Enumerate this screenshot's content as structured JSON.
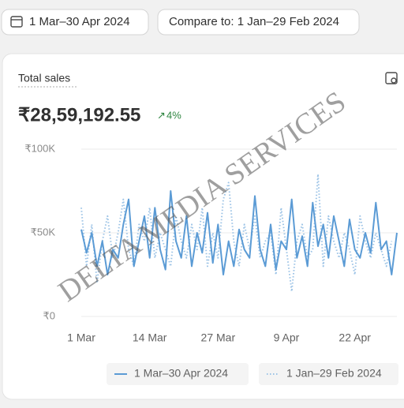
{
  "header": {
    "date_range": "1 Mar–30 Apr 2024",
    "compare": "Compare to: 1 Jan–29 Feb 2024"
  },
  "card": {
    "title": "Total sales",
    "total": "₹28,59,192.55",
    "change": "4%"
  },
  "watermark": "DELTA MEDIA SERVICES",
  "chart_data": {
    "type": "line",
    "categories": [
      "1 Mar",
      null,
      null,
      null,
      null,
      null,
      null,
      null,
      null,
      null,
      null,
      null,
      null,
      "14 Mar",
      null,
      null,
      null,
      null,
      null,
      null,
      null,
      null,
      null,
      null,
      null,
      null,
      "27 Mar",
      null,
      null,
      null,
      null,
      null,
      null,
      null,
      null,
      null,
      null,
      null,
      null,
      "9 Apr",
      null,
      null,
      null,
      null,
      null,
      null,
      null,
      null,
      null,
      null,
      null,
      null,
      "22 Apr",
      null,
      null,
      null,
      null,
      null,
      null,
      null,
      null
    ],
    "series": [
      {
        "name": "1 Mar–30 Apr 2024",
        "color": "#5b9bd5",
        "style": "solid",
        "values": [
          52000,
          38000,
          50000,
          30000,
          45000,
          25000,
          40000,
          35000,
          55000,
          70000,
          30000,
          45000,
          60000,
          35000,
          65000,
          40000,
          28000,
          75000,
          45000,
          35000,
          60000,
          30000,
          50000,
          38000,
          62000,
          32000,
          55000,
          25000,
          45000,
          30000,
          52000,
          40000,
          35000,
          72000,
          40000,
          30000,
          55000,
          28000,
          45000,
          40000,
          70000,
          35000,
          48000,
          30000,
          68000,
          42000,
          55000,
          35000,
          60000,
          45000,
          30000,
          58000,
          40000,
          35000,
          50000,
          38000,
          68000,
          40000,
          45000,
          25000,
          50000
        ]
      },
      {
        "name": "1 Jan–29 Feb 2024",
        "color": "#9cc3e6",
        "style": "dotted",
        "values": [
          65000,
          30000,
          55000,
          20000,
          45000,
          60000,
          35000,
          50000,
          70000,
          40000,
          30000,
          55000,
          45000,
          65000,
          35000,
          50000,
          40000,
          30000,
          60000,
          45000,
          35000,
          55000,
          40000,
          65000,
          30000,
          50000,
          35000,
          70000,
          80000,
          45000,
          30000,
          55000,
          40000,
          60000,
          35000,
          45000,
          50000,
          25000,
          65000,
          40000,
          15000,
          45000,
          55000,
          35000,
          40000,
          85000,
          30000,
          60000,
          45000,
          35000,
          50000,
          40000,
          25000,
          60000,
          45000,
          35000,
          50000,
          40000,
          30000,
          45000,
          null
        ]
      }
    ],
    "ylim": [
      0,
      100000
    ],
    "yticks": [
      {
        "value": 0,
        "label": "₹0"
      },
      {
        "value": 50000,
        "label": "₹50K"
      },
      {
        "value": 100000,
        "label": "₹100K"
      }
    ],
    "grid": true
  }
}
